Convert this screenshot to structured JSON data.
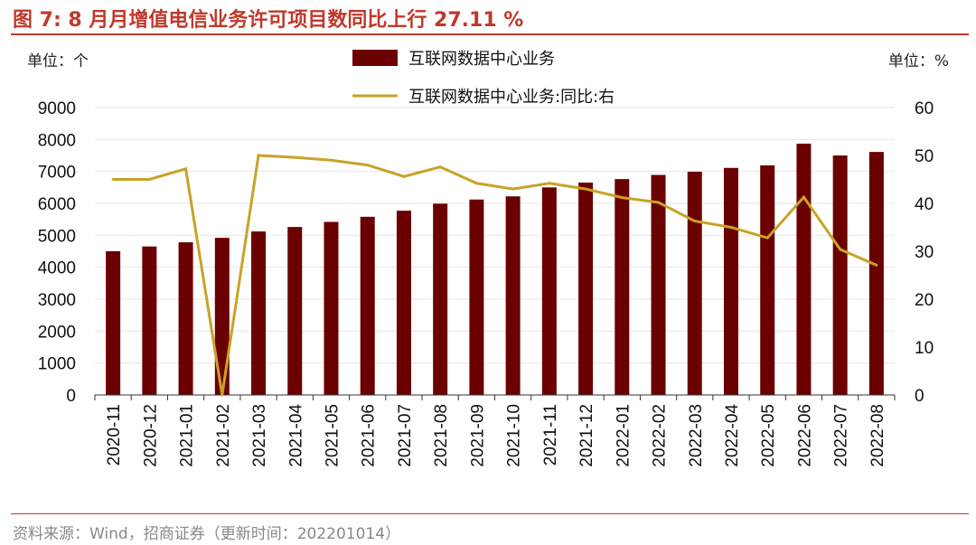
{
  "header": {
    "title": "图 7:  8 月月增值电信业务许可项目数同比上行 27.11 %"
  },
  "footer": {
    "source": "资料来源：Wind，招商证券（更新时间：202201014）"
  },
  "colors": {
    "bar": "#6b0000",
    "line": "#c9a227",
    "accent": "#c0392b",
    "grid": "#e6e6e6"
  },
  "chart_data": {
    "type": "bar",
    "categories": [
      "2020-11",
      "2020-12",
      "2021-01",
      "2021-02",
      "2021-03",
      "2021-04",
      "2021-05",
      "2021-06",
      "2021-07",
      "2021-08",
      "2021-09",
      "2021-10",
      "2021-11",
      "2021-12",
      "2022-01",
      "2022-02",
      "2022-03",
      "2022-04",
      "2022-05",
      "2022-06",
      "2022-07",
      "2022-08"
    ],
    "left_unit": "单位：个",
    "right_unit": "单位：%",
    "ylim_left": [
      0,
      9000
    ],
    "yticks_left": [
      0,
      1000,
      2000,
      3000,
      4000,
      5000,
      6000,
      7000,
      8000,
      9000
    ],
    "ylim_right": [
      0,
      60
    ],
    "yticks_right": [
      0,
      10,
      20,
      30,
      40,
      50,
      60
    ],
    "grid": true,
    "legend_position": "top",
    "series": [
      {
        "name": "互联网数据中心业务",
        "type": "bar",
        "axis": "left",
        "values": [
          4500,
          4650,
          4780,
          4920,
          5120,
          5260,
          5420,
          5580,
          5770,
          5990,
          6120,
          6220,
          6500,
          6650,
          6760,
          6890,
          6990,
          7110,
          7190,
          7870,
          7500,
          7610
        ]
      },
      {
        "name": "互联网数据中心业务:同比:右",
        "type": "line",
        "axis": "right",
        "values": [
          45.0,
          45.0,
          47.2,
          0.0,
          50.0,
          49.6,
          49.0,
          48.0,
          45.6,
          47.6,
          44.2,
          43.0,
          44.2,
          43.0,
          41.2,
          40.2,
          36.3,
          35.0,
          32.8,
          41.3,
          30.4,
          27.1
        ]
      }
    ]
  }
}
